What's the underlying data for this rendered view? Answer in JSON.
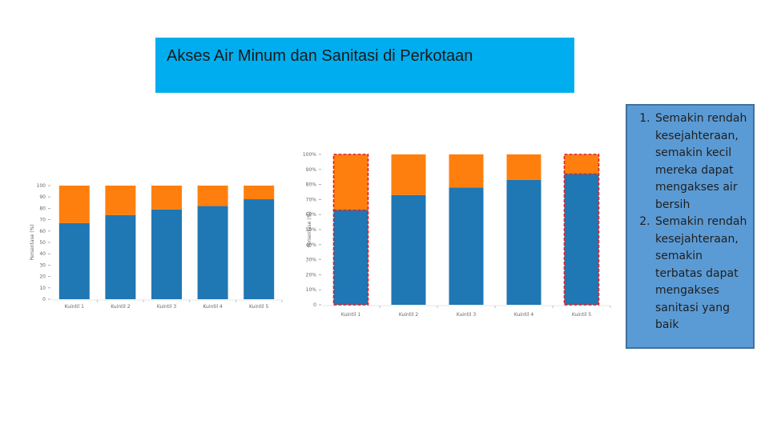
{
  "title": "Akses Air Minum dan Sanitasi di Perkotaan",
  "notes": [
    "Semakin rendah kesejahteraan, semakin kecil mereka dapat mengakses air bersih",
    "Semakin rendah kesejahteraan, semakin terbatas dapat mengakses sanitasi yang baik"
  ],
  "colors": {
    "accent": "#00aeef",
    "series_1": "#1f77b4",
    "series_2": "#ff7f0e",
    "highlight": "#e02020",
    "note_box": "#5b9bd5"
  },
  "chart_data": [
    {
      "type": "bar",
      "stacked": true,
      "categories": [
        "Kuintil 1",
        "Kuintil 2",
        "Kuintil 3",
        "Kuintil 4",
        "Kuintil 5"
      ],
      "series": [
        {
          "values": [
            67,
            74,
            79,
            82,
            88
          ]
        },
        {
          "values": [
            33,
            26,
            21,
            18,
            12
          ]
        }
      ],
      "ylabel": "Persentase (%)",
      "yticks": [
        0,
        10,
        20,
        30,
        40,
        50,
        60,
        70,
        80,
        90,
        100
      ],
      "ylim": [
        0,
        100
      ],
      "grid": false
    },
    {
      "type": "bar",
      "stacked": true,
      "categories": [
        "Kuintil 1",
        "Kuintil 2",
        "Kuintil 3",
        "Kuintil 4",
        "Kuintil 5"
      ],
      "series": [
        {
          "values": [
            63,
            73,
            78,
            83,
            87
          ]
        },
        {
          "values": [
            37,
            27,
            22,
            17,
            13
          ]
        }
      ],
      "highlighted_categories": [
        "Kuintil 1",
        "Kuintil 5"
      ],
      "ylabel": "Persentase (%)",
      "yticks": [
        "0",
        "10%",
        "20%",
        "30%",
        "40%",
        "50%",
        "60%",
        "70%",
        "80%",
        "90%",
        "100%"
      ],
      "ylim": [
        0,
        100
      ],
      "grid": false
    }
  ]
}
